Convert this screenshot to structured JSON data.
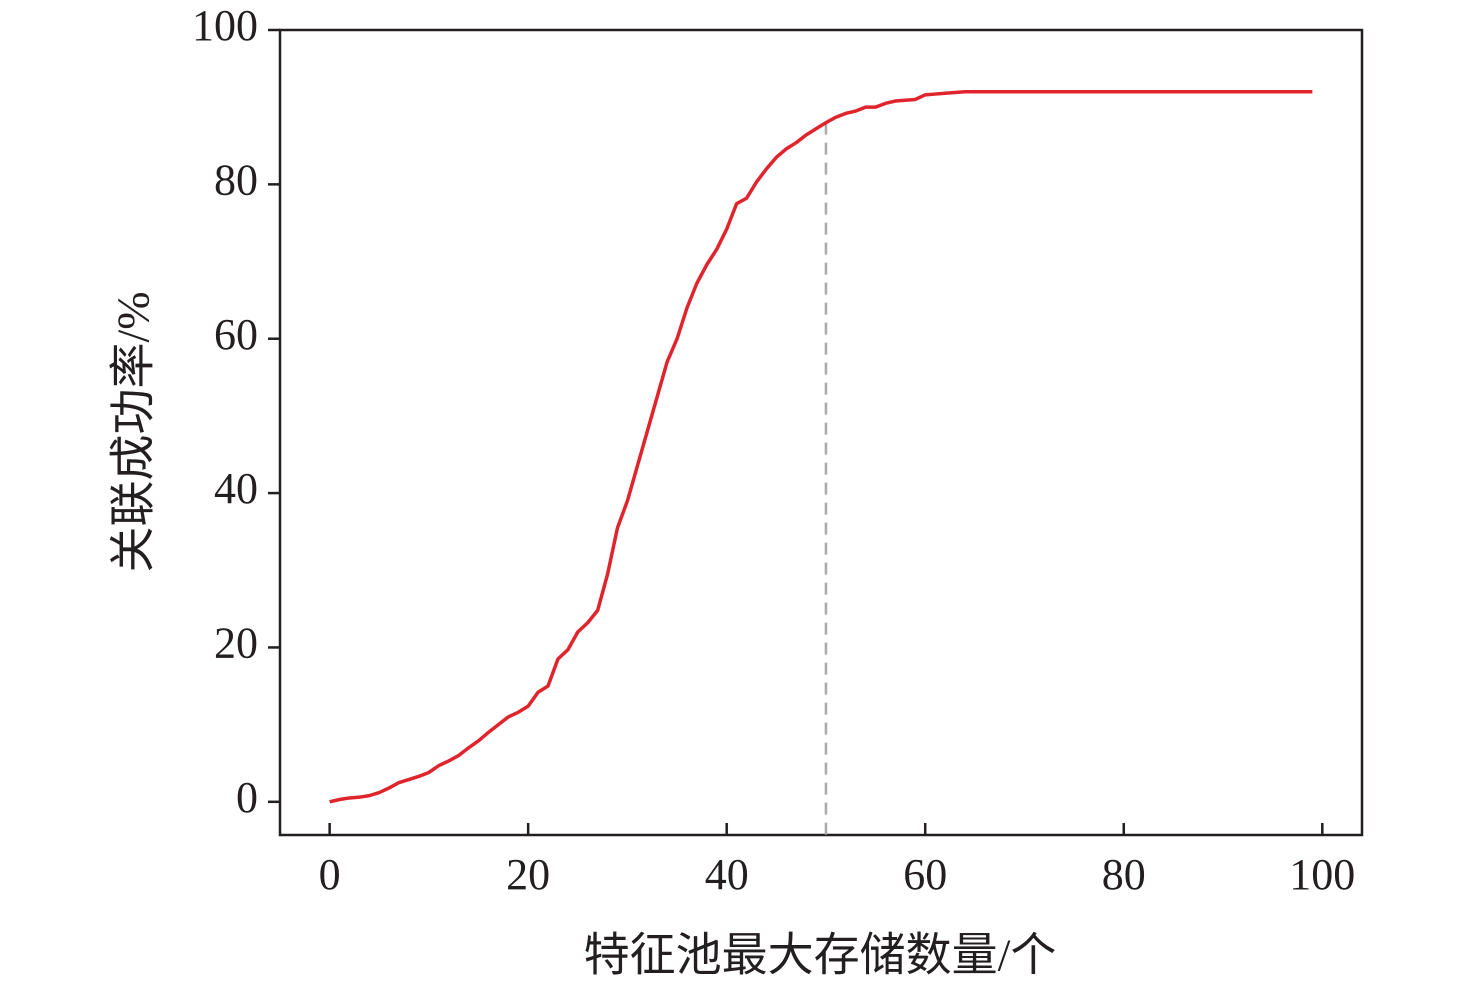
{
  "chart_data": {
    "type": "line",
    "x_label": "特征池最大存储数量/个",
    "y_label": "关联成功率/%",
    "x": [
      0,
      1,
      2,
      3,
      4,
      5,
      6,
      7,
      8,
      9,
      10,
      11,
      12,
      13,
      14,
      15,
      16,
      17,
      18,
      19,
      20,
      21,
      22,
      23,
      24,
      25,
      26,
      27,
      28,
      29,
      30,
      31,
      32,
      33,
      34,
      35,
      36,
      37,
      38,
      39,
      40,
      41,
      42,
      43,
      44,
      45,
      46,
      47,
      48,
      49,
      50,
      51,
      52,
      53,
      54,
      55,
      56,
      57,
      58,
      59,
      60,
      61,
      62,
      63,
      64,
      65,
      66,
      67,
      68,
      69,
      70,
      71,
      72,
      73,
      74,
      75,
      76,
      77,
      78,
      79,
      80,
      81,
      82,
      83,
      84,
      85,
      86,
      87,
      88,
      89,
      90,
      91,
      92,
      93,
      94,
      95,
      96,
      97,
      98,
      99
    ],
    "series": [
      {
        "color": "#e0242c",
        "values": [
          0,
          0.3,
          0.5,
          0.6,
          0.8,
          1.2,
          1.8,
          2.5,
          2.9,
          3.3,
          3.8,
          4.7,
          5.3,
          6,
          7,
          7.9,
          9,
          10,
          11,
          11.6,
          12.4,
          14.2,
          15,
          18.5,
          19.7,
          22,
          23.2,
          24.8,
          29.5,
          35.5,
          39,
          43.5,
          48,
          52.5,
          57,
          60,
          64,
          67.2,
          69.6,
          71.6,
          74.2,
          77.5,
          78.2,
          80.3,
          82,
          83.5,
          84.6,
          85.4,
          86.4,
          87.2,
          88,
          88.7,
          89.2,
          89.5,
          90,
          90,
          90.5,
          90.8,
          90.9,
          91,
          91.6,
          91.7,
          91.8,
          91.9,
          92,
          92,
          92,
          92,
          92,
          92,
          92,
          92,
          92,
          92,
          92,
          92,
          92,
          92,
          92,
          92,
          92,
          92,
          92,
          92,
          92,
          92,
          92,
          92,
          92,
          92,
          92,
          92,
          92,
          92,
          92,
          92,
          92,
          92,
          92,
          92
        ]
      }
    ],
    "reference_x": 50,
    "xlim": [
      -5,
      104
    ],
    "xticks": [
      0,
      20,
      40,
      60,
      80,
      100
    ],
    "ylim": [
      -4.3,
      100
    ],
    "yticks": [
      0,
      20,
      40,
      60,
      80,
      100
    ]
  }
}
